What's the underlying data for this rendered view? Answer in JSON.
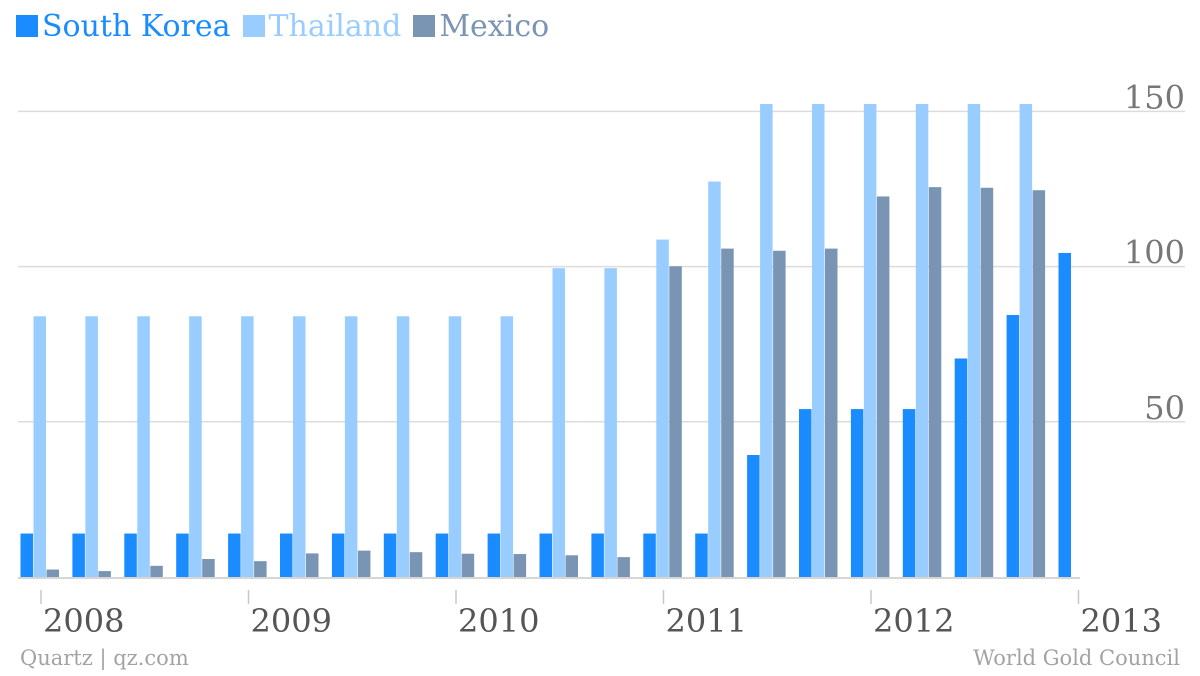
{
  "chart_data": {
    "type": "bar",
    "x_ticks": [
      "2008",
      "2009",
      "2010",
      "2011",
      "2012",
      "2013"
    ],
    "y_ticks": [
      50,
      100,
      150
    ],
    "ylim": [
      0,
      160
    ],
    "grid": true,
    "legend_position": "top-left",
    "series": [
      {
        "name": "South Korea",
        "color": "#1a8cff",
        "values": [
          14,
          14,
          14,
          14,
          14,
          14,
          14,
          14,
          14,
          14,
          14,
          14,
          14,
          14,
          39.3,
          54.1,
          54.1,
          54.1,
          70.4,
          84.4,
          104.4
        ]
      },
      {
        "name": "Thailand",
        "color": "#99ccff",
        "values": [
          84,
          84,
          84,
          84,
          84,
          84,
          84,
          84,
          84,
          84,
          99.5,
          99.5,
          108.7,
          127.4,
          152.4,
          152.4,
          152.4,
          152.4,
          152.4,
          152.4,
          null
        ]
      },
      {
        "name": "Mexico",
        "color": "#7a95b3",
        "values": [
          2.4,
          1.9,
          3.6,
          5.8,
          5.1,
          7.6,
          8.5,
          8.0,
          7.5,
          7.4,
          7.0,
          6.4,
          100.1,
          105.8,
          105.1,
          105.8,
          122.6,
          125.6,
          125.4,
          124.6,
          null
        ]
      }
    ]
  },
  "footer": {
    "left": "Quartz | qz.com",
    "right": "World Gold Council"
  }
}
